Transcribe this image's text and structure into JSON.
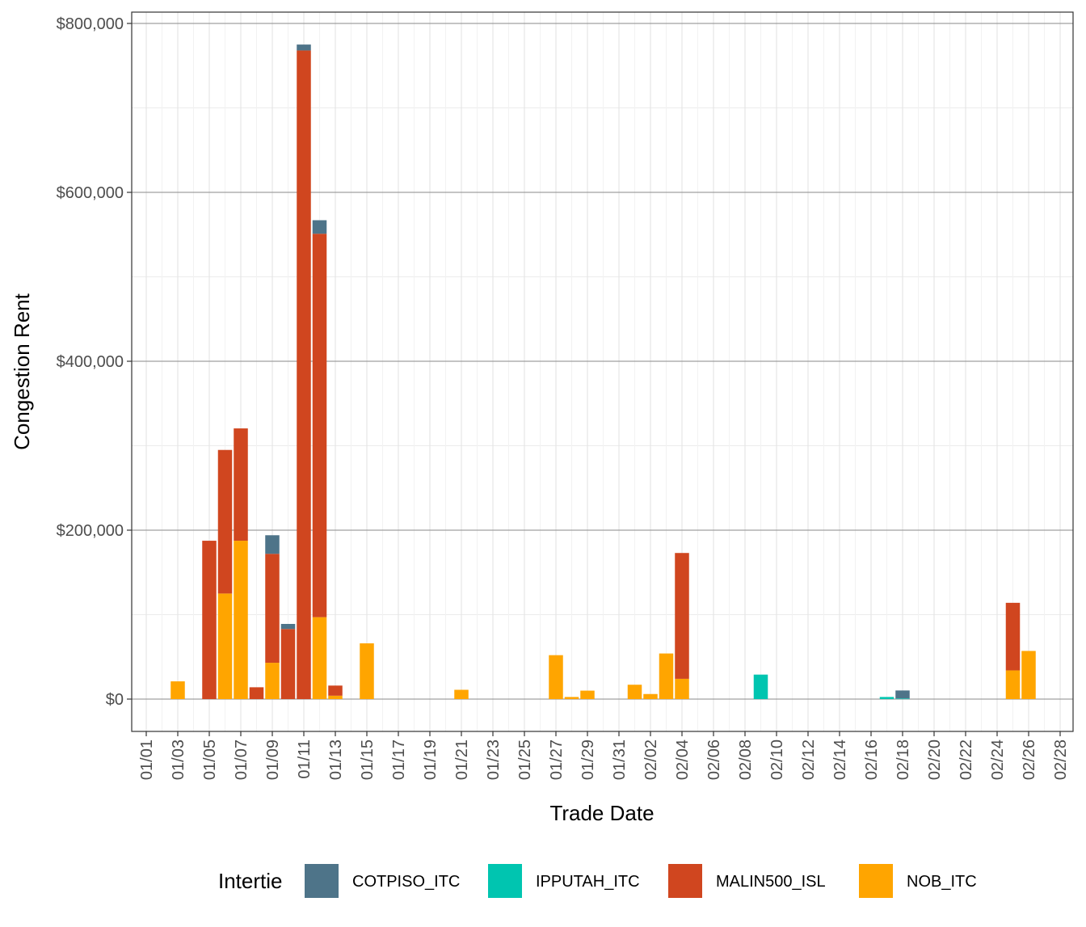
{
  "chart_data": {
    "type": "bar",
    "stacked": true,
    "xlabel": "Trade Date",
    "ylabel": "Congestion Rent",
    "ylim": [
      -40000,
      800000
    ],
    "yticks": [
      0,
      200000,
      400000,
      600000,
      800000
    ],
    "ytick_labels": [
      "$0",
      "$200,000",
      "$400,000",
      "$600,000",
      "$800,000"
    ],
    "xtick_labels": [
      "01/01",
      "01/03",
      "01/05",
      "01/07",
      "01/09",
      "01/11",
      "01/13",
      "01/15",
      "01/17",
      "01/19",
      "01/21",
      "01/23",
      "01/25",
      "01/27",
      "01/29",
      "01/31",
      "02/02",
      "02/04",
      "02/06",
      "02/08",
      "02/10",
      "02/12",
      "02/14",
      "02/16",
      "02/18",
      "02/20",
      "02/22",
      "02/24",
      "02/26",
      "02/28"
    ],
    "grid": true,
    "legend": {
      "title": "Intertie",
      "position": "bottom"
    },
    "series": [
      {
        "name": "NOB_ITC",
        "color": "#FFA500",
        "points": [
          {
            "date": "01/03",
            "value": 21000
          },
          {
            "date": "01/06",
            "value": 125000
          },
          {
            "date": "01/07",
            "value": 187500
          },
          {
            "date": "01/09",
            "value": 43000
          },
          {
            "date": "01/12",
            "value": 97000
          },
          {
            "date": "01/13",
            "value": 4000
          },
          {
            "date": "01/15",
            "value": 66000
          },
          {
            "date": "01/21",
            "value": 11000
          },
          {
            "date": "01/27",
            "value": 52000
          },
          {
            "date": "01/28",
            "value": 2500
          },
          {
            "date": "01/29",
            "value": 10000
          },
          {
            "date": "02/01",
            "value": 17000
          },
          {
            "date": "02/02",
            "value": 6000
          },
          {
            "date": "02/03",
            "value": 54000
          },
          {
            "date": "02/04",
            "value": 24000
          },
          {
            "date": "02/25",
            "value": 34000
          },
          {
            "date": "02/26",
            "value": 57000
          }
        ]
      },
      {
        "name": "MALIN500_ISL",
        "color": "#D0461F",
        "points": [
          {
            "date": "01/05",
            "value": 187500
          },
          {
            "date": "01/06",
            "value": 170000
          },
          {
            "date": "01/07",
            "value": 133000
          },
          {
            "date": "01/08",
            "value": 14000
          },
          {
            "date": "01/09",
            "value": 129000
          },
          {
            "date": "01/10",
            "value": 83000
          },
          {
            "date": "01/11",
            "value": 768000
          },
          {
            "date": "01/12",
            "value": 454000
          },
          {
            "date": "01/13",
            "value": 12000
          },
          {
            "date": "02/04",
            "value": 149000
          },
          {
            "date": "02/25",
            "value": 80000
          }
        ]
      },
      {
        "name": "IPPUTAH_ITC",
        "color": "#00C5B0",
        "points": [
          {
            "date": "02/09",
            "value": 29000
          },
          {
            "date": "02/17",
            "value": 2500
          },
          {
            "date": "02/18",
            "value": 700
          }
        ]
      },
      {
        "name": "COTPISO_ITC",
        "color": "#4E7489",
        "points": [
          {
            "date": "01/09",
            "value": 22000
          },
          {
            "date": "01/10",
            "value": 6000
          },
          {
            "date": "01/11",
            "value": 7000
          },
          {
            "date": "01/12",
            "value": 16000
          },
          {
            "date": "02/18",
            "value": 9500
          }
        ]
      }
    ]
  }
}
